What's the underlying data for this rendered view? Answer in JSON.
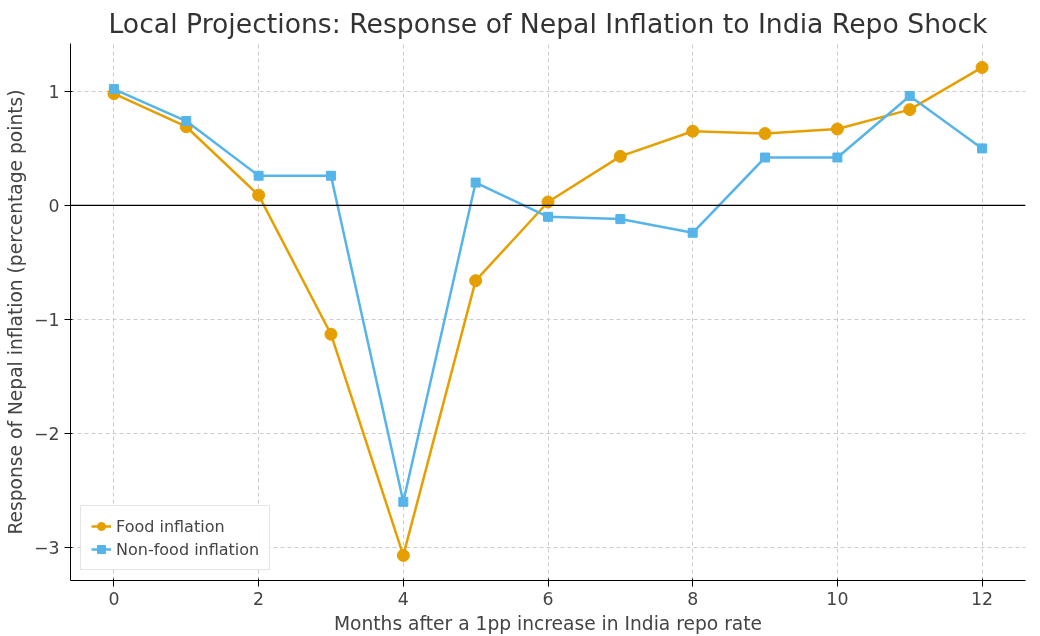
{
  "chart_data": {
    "type": "line",
    "title": "Local Projections: Response of Nepal Inflation to India Repo Shock",
    "xlabel": "Months after a 1pp increase in India repo rate",
    "ylabel": "Response of Nepal inflation (percentage points)",
    "x": [
      0,
      1,
      2,
      3,
      4,
      5,
      6,
      7,
      8,
      9,
      10,
      11,
      12
    ],
    "series": [
      {
        "name": "Food inflation",
        "color": "#e69f00",
        "marker": "circle",
        "values": [
          0.98,
          0.69,
          0.09,
          -1.13,
          -3.07,
          -0.66,
          0.03,
          0.43,
          0.65,
          0.63,
          0.67,
          0.84,
          1.21
        ]
      },
      {
        "name": "Non-food inflation",
        "color": "#56b4e9",
        "marker": "square",
        "values": [
          1.02,
          0.74,
          0.26,
          0.26,
          -2.6,
          0.2,
          -0.1,
          -0.12,
          -0.24,
          0.42,
          0.42,
          0.96,
          0.5
        ]
      }
    ],
    "xlim": [
      -0.6,
      12.6
    ],
    "ylim": [
      -3.29,
      1.42
    ],
    "xticks": [
      0,
      2,
      4,
      6,
      8,
      10,
      12
    ],
    "yticks": [
      {
        "value": -3,
        "label": "−3"
      },
      {
        "value": -2,
        "label": "−2"
      },
      {
        "value": -1,
        "label": "−1"
      },
      0,
      1
    ],
    "ref_lines": [
      {
        "axis": "y",
        "value": 0,
        "color": "#000000"
      }
    ],
    "grid": true,
    "legend": "bottom left",
    "line_style": "solid"
  }
}
